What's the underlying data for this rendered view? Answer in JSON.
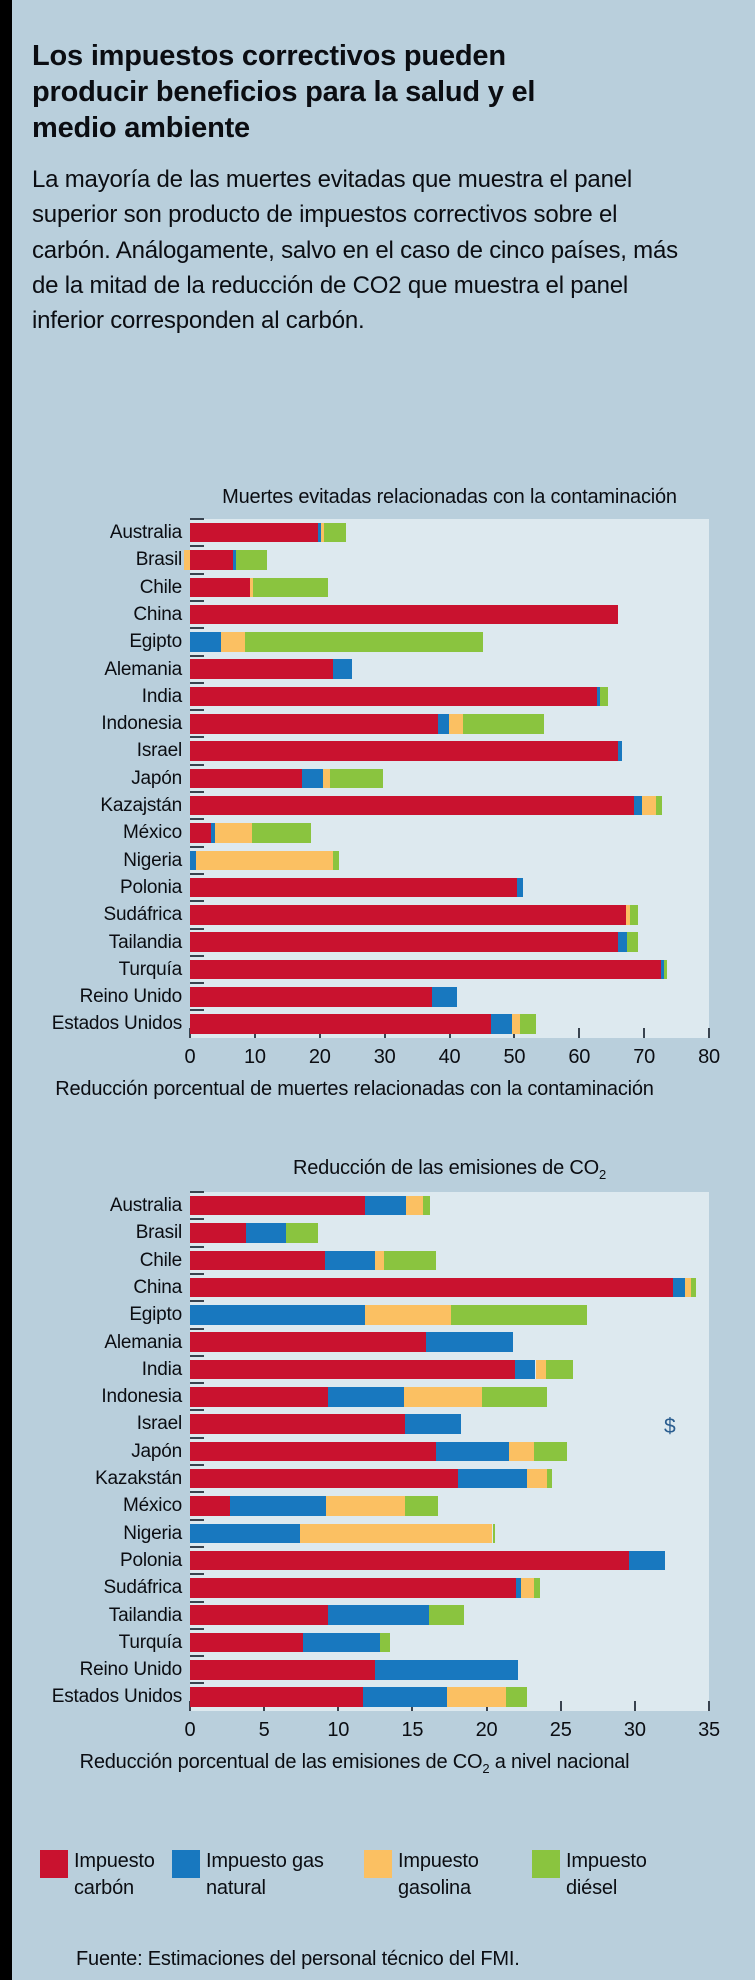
{
  "page": {
    "background_color": "#b9cfdc",
    "plot_background_color": "#dde9ef",
    "left_accent_bar_color": "#000000"
  },
  "colors": {
    "carbon": "#c9122f",
    "gas": "#1878bf",
    "gasolina": "#fbc062",
    "diesel": "#8ac43f",
    "tick": "#39434f",
    "annotation_blue": "#2a5d8f"
  },
  "header": {
    "title": "Los impuestos correctivos pueden producir beneficios para la salud y el medio ambiente",
    "intro": "La mayoría de las muertes evitadas que muestra el panel superior son producto de impuestos correctivos sobre el carbón. Análogamente, salvo en el caso de cinco países, más de la mitad de la reducción de CO2 que muestra el panel inferior corresponden al carbón."
  },
  "chart_data": [
    {
      "type": "bar",
      "orientation": "horizontal",
      "stacked": true,
      "grid": false,
      "title": "Muertes evitadas relacionadas con la contaminación",
      "xlabel": "Reducción porcentual de muertes relacionadas con la contaminación",
      "xlim": [
        0,
        80
      ],
      "xticks": [
        0,
        10,
        20,
        30,
        40,
        50,
        60,
        70,
        80
      ],
      "categories": [
        "Australia",
        "Brasil",
        "Chile",
        "China",
        "Egipto",
        "Alemania",
        "India",
        "Indonesia",
        "Israel",
        "Japón",
        "Kazajstán",
        "México",
        "Nigeria",
        "Polonia",
        "Sudáfrica",
        "Tailandia",
        "Turquía",
        "Reino Unido",
        "Estados Unidos"
      ],
      "series": [
        {
          "name": "Impuesto carbón",
          "color_key": "carbon",
          "values": [
            19.8,
            6.7,
            9.3,
            66.0,
            0,
            22.1,
            62.8,
            38.3,
            65.9,
            17.2,
            68.5,
            3.3,
            0,
            50.4,
            67.2,
            65.9,
            72.6,
            37.3,
            46.4
          ]
        },
        {
          "name": "Impuesto gas natural",
          "color_key": "gas",
          "values": [
            0.4,
            0.4,
            0,
            0,
            4.8,
            2.8,
            0.4,
            1.6,
            0.7,
            3.3,
            1.1,
            0.5,
            1.0,
            0.9,
            0,
            1.5,
            0.4,
            3.9,
            3.3
          ]
        },
        {
          "name": "Impuesto gasolina",
          "color_key": "gasolina",
          "values": [
            0.5,
            -1.0,
            0.4,
            0,
            3.7,
            0,
            0,
            2.2,
            0,
            1.1,
            2.3,
            5.7,
            21.1,
            0,
            0.6,
            0,
            0,
            0,
            1.2
          ]
        },
        {
          "name": "Impuesto diésel",
          "color_key": "diesel",
          "values": [
            3.4,
            4.8,
            11.6,
            0,
            36.6,
            0,
            1.2,
            12.5,
            0,
            8.1,
            0.9,
            9.2,
            0.8,
            0,
            1.3,
            1.6,
            0.5,
            0,
            2.5
          ]
        }
      ]
    },
    {
      "type": "bar",
      "orientation": "horizontal",
      "stacked": true,
      "grid": false,
      "title": "Reducción de las emisiones de CO",
      "title_sub": "2",
      "xlabel_pre": "Reducción porcentual de las emisiones de CO",
      "xlabel_sub": "2",
      "xlabel_post": " a nivel nacional",
      "xlim": [
        0,
        35
      ],
      "xticks": [
        0,
        5,
        10,
        15,
        20,
        25,
        30,
        35
      ],
      "annotation": {
        "text": "$"
      },
      "categories": [
        "Australia",
        "Brasil",
        "Chile",
        "China",
        "Egipto",
        "Alemania",
        "India",
        "Indonesia",
        "Israel",
        "Japón",
        "Kazakstán",
        "México",
        "Nigeria",
        "Polonia",
        "Sudáfrica",
        "Tailandia",
        "Turquía",
        "Reino Unido",
        "Estados Unidos"
      ],
      "series": [
        {
          "name": "Impuesto carbón",
          "color_key": "carbon",
          "values": [
            11.8,
            3.8,
            9.1,
            32.6,
            0,
            15.9,
            21.9,
            9.3,
            14.5,
            16.6,
            18.1,
            2.7,
            0,
            29.6,
            22.0,
            9.3,
            7.6,
            12.5,
            11.7
          ]
        },
        {
          "name": "Impuesto gas natural",
          "color_key": "gas",
          "values": [
            2.8,
            2.7,
            3.4,
            0.8,
            11.8,
            5.9,
            1.4,
            5.1,
            3.8,
            4.9,
            4.6,
            6.5,
            7.4,
            2.4,
            0.3,
            6.8,
            5.2,
            9.6,
            5.6
          ]
        },
        {
          "name": "Impuesto gasolina",
          "color_key": "gasolina",
          "values": [
            1.1,
            0,
            0.6,
            0.4,
            5.8,
            0,
            0.7,
            5.3,
            0,
            1.7,
            1.4,
            5.3,
            13.0,
            0,
            0.9,
            0,
            0,
            0,
            4.0
          ]
        },
        {
          "name": "Impuesto diésel",
          "color_key": "diesel",
          "values": [
            0.5,
            2.1,
            3.5,
            0.3,
            9.2,
            0,
            1.8,
            4.4,
            0,
            2.2,
            0.3,
            2.2,
            0.2,
            0,
            0.4,
            2.4,
            0.7,
            0,
            1.4
          ]
        }
      ]
    }
  ],
  "legend": {
    "items": [
      {
        "label": "Impuesto carbón",
        "color_key": "carbon"
      },
      {
        "label": "Impuesto gas natural",
        "color_key": "gas"
      },
      {
        "label": "Impuesto gasolina",
        "color_key": "gasolina"
      },
      {
        "label": "Impuesto diésel",
        "color_key": "diesel"
      }
    ]
  },
  "source": "Fuente: Estimaciones del personal técnico del FMI."
}
